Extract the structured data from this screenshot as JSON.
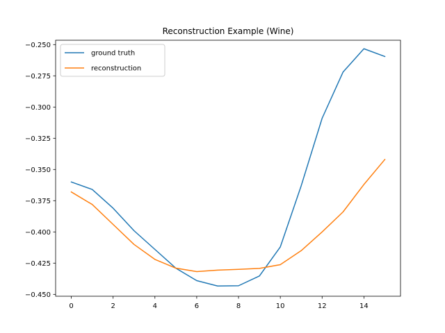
{
  "chart_data": {
    "type": "line",
    "title": "Reconstruction Example (Wine)",
    "xlabel": "",
    "ylabel": "",
    "x": [
      0,
      1,
      2,
      3,
      4,
      5,
      6,
      7,
      8,
      9,
      10,
      11,
      12,
      13,
      14,
      15
    ],
    "xlim": [
      -0.75,
      15.75
    ],
    "ylim": [
      -0.4515,
      -0.2465
    ],
    "x_ticks": [
      0,
      2,
      4,
      6,
      8,
      10,
      12,
      14
    ],
    "x_tick_labels": [
      "0",
      "2",
      "4",
      "6",
      "8",
      "10",
      "12",
      "14"
    ],
    "y_ticks": [
      -0.25,
      -0.275,
      -0.3,
      -0.325,
      -0.35,
      -0.375,
      -0.4,
      -0.425,
      -0.45
    ],
    "y_tick_labels": [
      "−0.250",
      "−0.275",
      "−0.300",
      "−0.325",
      "−0.350",
      "−0.375",
      "−0.400",
      "−0.425",
      "−0.450"
    ],
    "grid": false,
    "legend_position": "top-left",
    "series": [
      {
        "name": "ground truth",
        "color": "#1f77b4",
        "values": [
          -0.36,
          -0.366,
          -0.381,
          -0.399,
          -0.414,
          -0.429,
          -0.439,
          -0.4433,
          -0.4431,
          -0.4353,
          -0.412,
          -0.363,
          -0.309,
          -0.272,
          -0.2533,
          -0.2595
        ]
      },
      {
        "name": "reconstruction",
        "color": "#ff7f0e",
        "values": [
          -0.368,
          -0.378,
          -0.394,
          -0.41,
          -0.422,
          -0.429,
          -0.4318,
          -0.4306,
          -0.43,
          -0.4292,
          -0.4262,
          -0.415,
          -0.4,
          -0.384,
          -0.362,
          -0.342
        ]
      }
    ]
  }
}
